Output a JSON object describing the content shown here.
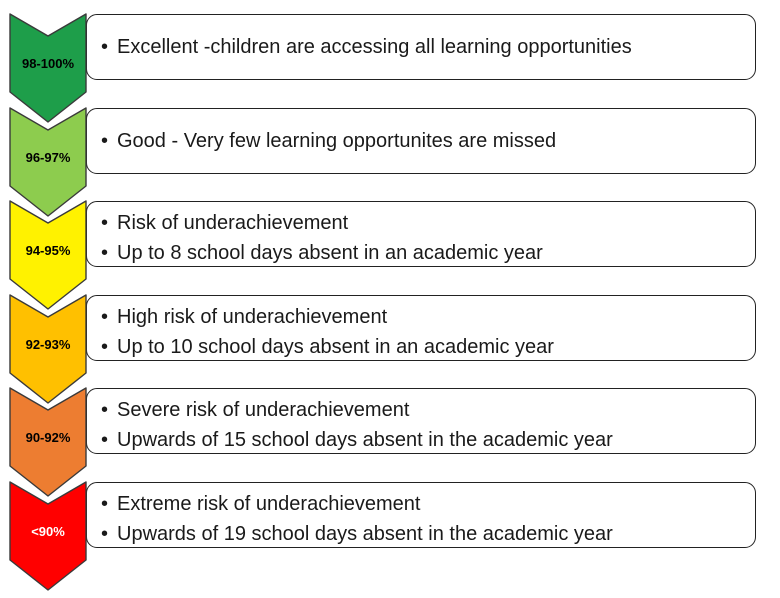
{
  "levels": [
    {
      "label": "98-100%",
      "color": "#1e9e4a",
      "label_color": "#000000",
      "bullets": [
        "Excellent -children are accessing all learning opportunities"
      ]
    },
    {
      "label": "96-97%",
      "color": "#8dcc4e",
      "label_color": "#000000",
      "bullets": [
        "Good - Very few learning opportunites are missed"
      ]
    },
    {
      "label": "94-95%",
      "color": "#fff200",
      "label_color": "#000000",
      "bullets": [
        "Risk of underachievement",
        "Up to 8 school days absent in an academic year"
      ]
    },
    {
      "label": "92-93%",
      "color": "#ffc000",
      "label_color": "#000000",
      "bullets": [
        "High risk of underachievement",
        "Up to 10 school days absent in an academic year"
      ]
    },
    {
      "label": "90-92%",
      "color": "#ed7d31",
      "label_color": "#000000",
      "bullets": [
        "Severe risk of underachievement",
        "Upwards of 15 school days absent in the academic year"
      ]
    },
    {
      "label": "<90%",
      "color": "#ff0000",
      "label_color": "#ffffff",
      "bullets": [
        "Extreme risk of underachievement",
        "Upwards of 19 school days absent in the academic year"
      ]
    }
  ],
  "bullet_symbol": "•"
}
